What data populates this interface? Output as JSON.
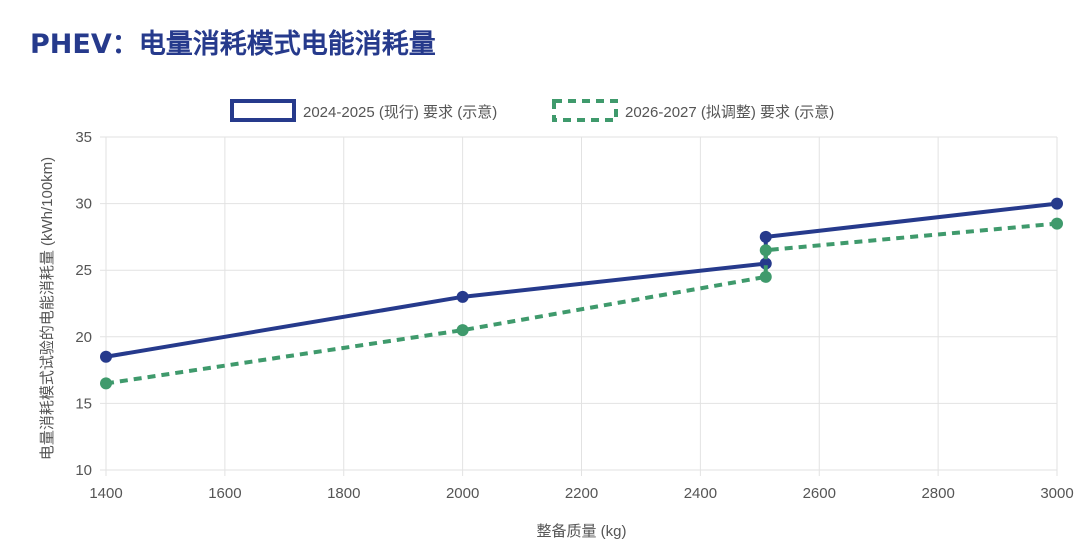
{
  "title": "PHEV：电量消耗模式电能消耗量",
  "chart_data": {
    "type": "line",
    "title": "PHEV：电量消耗模式电能消耗量",
    "xlabel": "整备质量 (kg)",
    "ylabel": "电量消耗模式试验的电能消耗量 (kWh/100km)",
    "xlim": [
      1400,
      3000
    ],
    "ylim": [
      10,
      35
    ],
    "xticks": [
      1400,
      1600,
      1800,
      2000,
      2200,
      2400,
      2600,
      2800,
      3000
    ],
    "yticks": [
      10,
      15,
      20,
      25,
      30,
      35
    ],
    "grid": true,
    "legend": "top",
    "series": [
      {
        "name": "2024-2025 (现行) 要求 (示意)",
        "color": "#263a8c",
        "style": "solid",
        "points": [
          [
            1400,
            18.5
          ],
          [
            2000,
            23
          ],
          [
            2510,
            25.5
          ],
          [
            2510,
            27.5
          ],
          [
            3000,
            30
          ]
        ]
      },
      {
        "name": "2026-2027 (拟调整) 要求 (示意)",
        "color": "#3f9a6c",
        "style": "dashed",
        "points": [
          [
            1400,
            16.5
          ],
          [
            2000,
            20.5
          ],
          [
            2510,
            24.5
          ],
          [
            2510,
            26.5
          ],
          [
            3000,
            28.5
          ]
        ]
      }
    ]
  }
}
